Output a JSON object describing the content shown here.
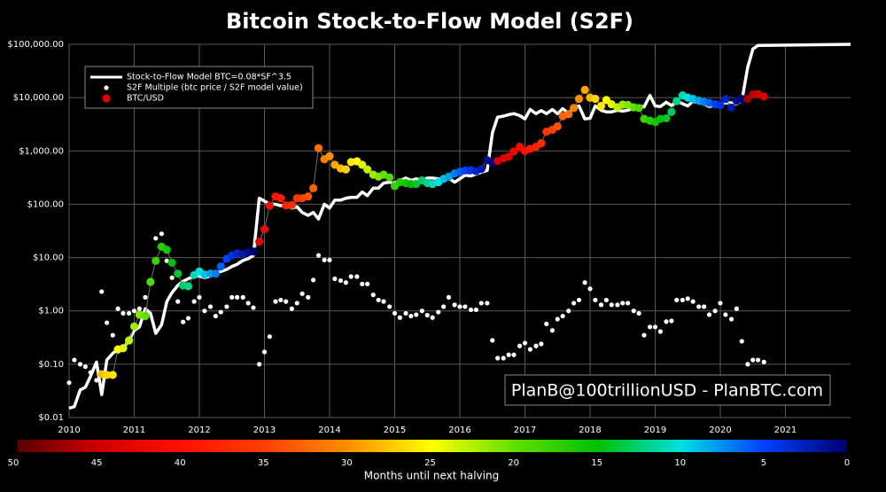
{
  "chart_data": {
    "type": "line",
    "title": "Bitcoin Stock-to-Flow Model (S2F)",
    "xlim": [
      2010,
      2022
    ],
    "xticks": [
      2010,
      2011,
      2012,
      2013,
      2014,
      2015,
      2016,
      2017,
      2018,
      2019,
      2020,
      2021
    ],
    "ylim": [
      0.01,
      100000
    ],
    "log_scale": true,
    "grid": true,
    "legend": "upper left",
    "yticks": [
      {
        "value": 0.01,
        "label": "$0.01"
      },
      {
        "value": 0.1,
        "label": "$0.10"
      },
      {
        "value": 1,
        "label": "$1.00"
      },
      {
        "value": 10,
        "label": "$10.00"
      },
      {
        "value": 100,
        "label": "$100.00"
      },
      {
        "value": 1000,
        "label": "$1,000.00"
      },
      {
        "value": 10000,
        "label": "$10,000.00"
      },
      {
        "value": 100000,
        "label": "$100,000.00"
      }
    ],
    "series": [
      {
        "name": "Stock-to-Flow Model BTC=0.08*SF^3.5",
        "kind": "line",
        "color": "#ffffff",
        "x": [
          2010.0,
          2010.08,
          2010.17,
          2010.25,
          2010.33,
          2010.42,
          2010.5,
          2010.58,
          2010.67,
          2010.75,
          2010.83,
          2010.92,
          2011.0,
          2011.08,
          2011.17,
          2011.25,
          2011.33,
          2011.42,
          2011.5,
          2011.58,
          2011.67,
          2011.75,
          2011.83,
          2011.92,
          2012.0,
          2012.08,
          2012.17,
          2012.25,
          2012.33,
          2012.42,
          2012.5,
          2012.58,
          2012.67,
          2012.75,
          2012.83,
          2012.92,
          2013.0,
          2013.08,
          2013.17,
          2013.25,
          2013.33,
          2013.42,
          2013.5,
          2013.58,
          2013.67,
          2013.75,
          2013.83,
          2013.92,
          2014.0,
          2014.08,
          2014.17,
          2014.25,
          2014.33,
          2014.42,
          2014.5,
          2014.58,
          2014.67,
          2014.75,
          2014.83,
          2014.92,
          2015.0,
          2015.08,
          2015.17,
          2015.25,
          2015.33,
          2015.42,
          2015.5,
          2015.58,
          2015.67,
          2015.75,
          2015.83,
          2015.92,
          2016.0,
          2016.08,
          2016.17,
          2016.25,
          2016.33,
          2016.42,
          2016.5,
          2016.58,
          2016.67,
          2016.75,
          2016.83,
          2016.92,
          2017.0,
          2017.08,
          2017.17,
          2017.25,
          2017.33,
          2017.42,
          2017.5,
          2017.58,
          2017.67,
          2017.75,
          2017.83,
          2017.92,
          2018.0,
          2018.08,
          2018.17,
          2018.25,
          2018.33,
          2018.42,
          2018.5,
          2018.58,
          2018.67,
          2018.75,
          2018.83,
          2018.92,
          2019.0,
          2019.08,
          2019.17,
          2019.25,
          2019.33,
          2019.42,
          2019.5,
          2019.58,
          2019.67,
          2019.75,
          2019.83,
          2019.92,
          2020.0,
          2020.08,
          2020.17,
          2020.25,
          2020.33,
          2020.42,
          2020.5,
          2020.58,
          2022.0
        ],
        "values": [
          0.015,
          0.016,
          0.033,
          0.037,
          0.06,
          0.11,
          0.027,
          0.12,
          0.16,
          0.19,
          0.2,
          0.28,
          0.43,
          0.5,
          1.1,
          0.9,
          0.38,
          0.55,
          1.5,
          2.2,
          3.0,
          3.6,
          4,
          4.5,
          4.5,
          4.2,
          4.5,
          5.0,
          5.5,
          6,
          6.8,
          7.5,
          8.8,
          9.5,
          11,
          130,
          115,
          100,
          100,
          94,
          97,
          85,
          90,
          70,
          62,
          70,
          53,
          100,
          85,
          120,
          120,
          130,
          135,
          135,
          170,
          145,
          200,
          200,
          250,
          260,
          250,
          280,
          310,
          280,
          300,
          280,
          310,
          310,
          300,
          290,
          310,
          260,
          300,
          350,
          340,
          370,
          400,
          430,
          2200,
          4300,
          4500,
          4800,
          5000,
          4600,
          4000,
          6000,
          5000,
          5700,
          5000,
          6000,
          5000,
          6200,
          5100,
          6500,
          7000,
          4000,
          4100,
          7000,
          5800,
          5400,
          5400,
          5800,
          5600,
          5800,
          6300,
          7000,
          6700,
          11000,
          7000,
          6800,
          8200,
          7100,
          8600,
          7700,
          7000,
          8600,
          8000,
          7600,
          6800,
          7200,
          7600,
          8000,
          8000,
          7600,
          8800,
          37000,
          82000,
          95000,
          100000
        ]
      },
      {
        "name": "S2F Multiple (btc price / S2F model value)",
        "kind": "dots",
        "color": "#ffffff",
        "x": [
          2010.0,
          2010.08,
          2010.17,
          2010.25,
          2010.33,
          2010.42,
          2010.5,
          2010.58,
          2010.67,
          2010.75,
          2010.83,
          2010.92,
          2011.0,
          2011.08,
          2011.17,
          2011.25,
          2011.33,
          2011.42,
          2011.5,
          2011.58,
          2011.67,
          2011.75,
          2011.83,
          2011.92,
          2012.0,
          2012.08,
          2012.17,
          2012.25,
          2012.33,
          2012.42,
          2012.5,
          2012.58,
          2012.67,
          2012.75,
          2012.83,
          2012.92,
          2013.0,
          2013.08,
          2013.17,
          2013.25,
          2013.33,
          2013.42,
          2013.5,
          2013.58,
          2013.67,
          2013.75,
          2013.83,
          2013.92,
          2014.0,
          2014.08,
          2014.17,
          2014.25,
          2014.33,
          2014.42,
          2014.5,
          2014.58,
          2014.67,
          2014.75,
          2014.83,
          2014.92,
          2015.0,
          2015.08,
          2015.17,
          2015.25,
          2015.33,
          2015.42,
          2015.5,
          2015.58,
          2015.67,
          2015.75,
          2015.83,
          2015.92,
          2016.0,
          2016.08,
          2016.17,
          2016.25,
          2016.33,
          2016.42,
          2016.5,
          2016.58,
          2016.67,
          2016.75,
          2016.83,
          2016.92,
          2017.0,
          2017.08,
          2017.17,
          2017.25,
          2017.33,
          2017.42,
          2017.5,
          2017.58,
          2017.67,
          2017.75,
          2017.83,
          2017.92,
          2018.0,
          2018.08,
          2018.17,
          2018.25,
          2018.33,
          2018.42,
          2018.5,
          2018.58,
          2018.67,
          2018.75,
          2018.83,
          2018.92,
          2019.0,
          2019.08,
          2019.17,
          2019.25,
          2019.33,
          2019.42,
          2019.5,
          2019.58,
          2019.67,
          2019.75,
          2019.83,
          2019.92,
          2020.0,
          2020.08,
          2020.17,
          2020.25,
          2020.33,
          2020.42,
          2020.5,
          2020.58,
          2020.67
        ],
        "values": [
          0.045,
          0.12,
          0.1,
          0.09,
          0.07,
          0.05,
          2.3,
          0.6,
          0.35,
          1.1,
          0.9,
          0.9,
          1.0,
          1.1,
          1.8,
          3.7,
          23,
          28,
          8.7,
          4.2,
          1.5,
          0.62,
          0.73,
          1.5,
          1.8,
          1.0,
          1.2,
          0.8,
          0.95,
          1.2,
          1.8,
          1.8,
          1.8,
          1.4,
          1.15,
          0.1,
          0.17,
          0.33,
          1.5,
          1.6,
          1.5,
          1.1,
          1.4,
          2.1,
          1.8,
          3.8,
          11,
          9,
          9,
          4,
          3.7,
          3.4,
          4.4,
          4.4,
          3.2,
          3.2,
          2.0,
          1.6,
          1.5,
          1.2,
          0.9,
          0.75,
          0.9,
          0.8,
          0.85,
          1.0,
          0.83,
          0.75,
          0.95,
          1.2,
          1.8,
          1.3,
          1.2,
          1.2,
          1.05,
          1.05,
          1.4,
          1.4,
          0.28,
          0.13,
          0.13,
          0.15,
          0.15,
          0.22,
          0.25,
          0.19,
          0.22,
          0.24,
          0.57,
          0.43,
          0.7,
          0.8,
          1.0,
          1.4,
          1.6,
          3.4,
          2.6,
          1.6,
          1.3,
          1.6,
          1.3,
          1.3,
          1.4,
          1.4,
          1.0,
          0.9,
          0.35,
          0.5,
          0.5,
          0.41,
          0.63,
          0.65,
          1.6,
          1.6,
          1.7,
          1.5,
          1.2,
          1.2,
          0.85,
          1.0,
          1.4,
          0.85,
          0.7,
          1.1,
          0.27,
          0.1,
          0.12,
          0.12,
          0.11
        ]
      },
      {
        "name": "BTC/USD",
        "kind": "colored-dots",
        "color": "#e00000",
        "line_color": "#6e6e6e",
        "x": [
          2010.5,
          2010.58,
          2010.67,
          2010.75,
          2010.83,
          2010.92,
          2011.0,
          2011.08,
          2011.17,
          2011.25,
          2011.33,
          2011.42,
          2011.5,
          2011.58,
          2011.67,
          2011.75,
          2011.83,
          2011.92,
          2012.0,
          2012.08,
          2012.17,
          2012.25,
          2012.33,
          2012.42,
          2012.5,
          2012.58,
          2012.67,
          2012.75,
          2012.83,
          2012.92,
          2013.0,
          2013.08,
          2013.17,
          2013.25,
          2013.33,
          2013.42,
          2013.5,
          2013.58,
          2013.67,
          2013.75,
          2013.83,
          2013.92,
          2014.0,
          2014.08,
          2014.17,
          2014.25,
          2014.33,
          2014.42,
          2014.5,
          2014.58,
          2014.67,
          2014.75,
          2014.83,
          2014.92,
          2015.0,
          2015.08,
          2015.17,
          2015.25,
          2015.33,
          2015.42,
          2015.5,
          2015.58,
          2015.67,
          2015.75,
          2015.83,
          2015.92,
          2016.0,
          2016.08,
          2016.17,
          2016.25,
          2016.33,
          2016.42,
          2016.5,
          2016.58,
          2016.67,
          2016.75,
          2016.83,
          2016.92,
          2017.0,
          2017.08,
          2017.17,
          2017.25,
          2017.33,
          2017.42,
          2017.5,
          2017.58,
          2017.67,
          2017.75,
          2017.83,
          2017.92,
          2018.0,
          2018.08,
          2018.17,
          2018.25,
          2018.33,
          2018.42,
          2018.5,
          2018.58,
          2018.67,
          2018.75,
          2018.83,
          2018.92,
          2019.0,
          2019.08,
          2019.17,
          2019.25,
          2019.33,
          2019.42,
          2019.5,
          2019.58,
          2019.67,
          2019.75,
          2019.83,
          2019.92,
          2020.0,
          2020.08,
          2020.17,
          2020.25,
          2020.33,
          2020.42,
          2020.5,
          2020.58,
          2020.67
        ],
        "values": [
          0.065,
          0.063,
          0.063,
          0.19,
          0.2,
          0.28,
          0.51,
          0.85,
          0.8,
          3.5,
          8.7,
          16,
          14,
          8,
          5,
          3,
          2.9,
          4.7,
          5.5,
          4.8,
          5,
          5,
          6.8,
          9.5,
          11,
          12,
          11.5,
          12.5,
          13,
          20,
          34,
          94,
          140,
          130,
          95,
          97,
          130,
          130,
          140,
          200,
          1130,
          700,
          800,
          550,
          470,
          450,
          620,
          640,
          550,
          450,
          360,
          330,
          360,
          320,
          220,
          260,
          250,
          240,
          240,
          280,
          250,
          240,
          260,
          300,
          330,
          380,
          410,
          430,
          440,
          420,
          460,
          670,
          600,
          650,
          730,
          780,
          980,
          1200,
          1000,
          1100,
          1200,
          1400,
          2300,
          2500,
          2900,
          4500,
          4900,
          6400,
          9500,
          14000,
          10000,
          9500,
          7000,
          9000,
          7500,
          6600,
          7400,
          7300,
          6600,
          6400,
          4000,
          3700,
          3500,
          4000,
          4100,
          5400,
          8600,
          11000,
          10000,
          9500,
          8800,
          8300,
          8000,
          7500,
          7200,
          9400,
          6500,
          8700,
          9500,
          9500,
          11500,
          11700,
          10500
        ],
        "months": [
          28,
          27,
          26,
          25,
          24,
          23,
          22,
          21,
          20,
          19,
          18,
          17,
          16,
          15,
          14,
          13,
          12,
          11,
          10,
          9,
          8,
          7,
          6,
          5,
          4,
          3,
          2,
          1,
          0,
          43,
          42,
          41,
          40,
          39,
          38,
          37,
          36,
          35,
          34,
          33,
          32,
          31,
          30,
          29,
          28,
          27,
          26,
          25,
          24,
          23,
          22,
          21,
          20,
          19,
          18,
          17,
          16,
          15,
          14,
          13,
          12,
          11,
          10,
          9,
          8,
          7,
          6,
          5,
          4,
          3,
          2,
          1,
          0,
          45,
          44,
          43,
          42,
          41,
          40,
          39,
          38,
          37,
          36,
          35,
          34,
          33,
          32,
          31,
          30,
          29,
          28,
          27,
          26,
          25,
          24,
          23,
          22,
          21,
          20,
          19,
          18,
          17,
          16,
          15,
          14,
          13,
          12,
          11,
          10,
          9,
          8,
          7,
          6,
          5,
          4,
          3,
          2,
          1,
          0,
          47,
          46,
          45,
          44
        ]
      }
    ],
    "colorbar": {
      "label": "Months until next halving",
      "lim": [
        50,
        0
      ],
      "ticks": [
        50,
        45,
        40,
        35,
        30,
        25,
        20,
        15,
        10,
        5,
        0
      ],
      "colormap": [
        "#5a0000",
        "#d00000",
        "#ff1000",
        "#ff4000",
        "#ff9000",
        "#ffff00",
        "#60e000",
        "#00c000",
        "#00e0e0",
        "#0040ff",
        "#000070"
      ]
    },
    "watermark": "PlanB@100trillionUSD - PlanBTC.com"
  }
}
